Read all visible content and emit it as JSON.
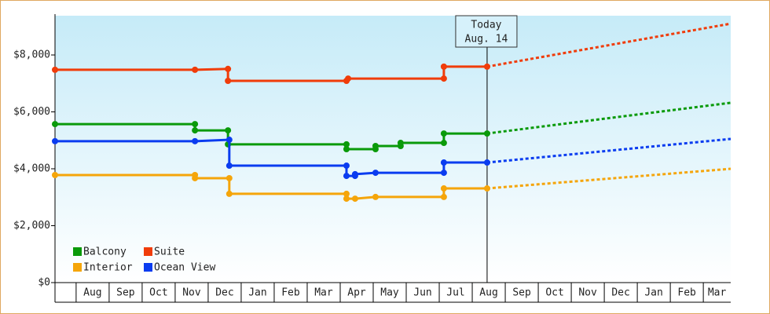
{
  "chart_data": {
    "type": "step-line",
    "categories": [
      "Aug",
      "Sep",
      "Oct",
      "Nov",
      "Dec",
      "Jan",
      "Feb",
      "Mar",
      "Apr",
      "May",
      "Jun",
      "Jul",
      "Aug",
      "Sep",
      "Oct",
      "Nov",
      "Dec",
      "Jan",
      "Feb",
      "Mar"
    ],
    "xlim": [
      -0.64,
      19.83
    ],
    "ylim": [
      0,
      9380
    ],
    "yticks": [
      {
        "value": 0,
        "label": "$0"
      },
      {
        "value": 2000,
        "label": "$2,000"
      },
      {
        "value": 4000,
        "label": "$4,000"
      },
      {
        "value": 6000,
        "label": "$6,000"
      },
      {
        "value": 8000,
        "label": "$8,000"
      }
    ],
    "annotation": {
      "x": 12.45,
      "lines": [
        "Today",
        "Aug. 14"
      ]
    },
    "legend_position": "lower left",
    "series": [
      {
        "name": "Balcony",
        "color": "#0a9a0a",
        "x": [
          -0.64,
          3.6,
          3.6,
          4.6,
          4.6,
          8.19,
          8.19,
          9.07,
          9.07,
          9.83,
          9.83,
          11.14,
          11.14,
          12.45
        ],
        "values": [
          5570,
          5570,
          5350,
          5350,
          4860,
          4860,
          4690,
          4690,
          4800,
          4800,
          4910,
          4910,
          5240,
          5240
        ],
        "forecast": {
          "x": [
            12.45,
            19.83
          ],
          "values": [
            5240,
            6320
          ]
        }
      },
      {
        "name": "Suite",
        "color": "#f03c0a",
        "x": [
          -0.64,
          3.6,
          4.6,
          4.6,
          8.19,
          8.24,
          11.14,
          11.14,
          12.45
        ],
        "values": [
          7480,
          7480,
          7510,
          7090,
          7090,
          7170,
          7170,
          7590,
          7590
        ],
        "forecast": {
          "x": [
            12.45,
            19.83
          ],
          "values": [
            7590,
            9100
          ]
        }
      },
      {
        "name": "Interior",
        "color": "#f5a50a",
        "x": [
          -0.64,
          3.6,
          3.6,
          4.64,
          4.64,
          8.19,
          8.19,
          8.45,
          9.07,
          11.14,
          11.14,
          12.45
        ],
        "values": [
          3780,
          3780,
          3670,
          3670,
          3120,
          3120,
          2950,
          2950,
          3010,
          3010,
          3310,
          3310
        ],
        "forecast": {
          "x": [
            12.45,
            19.83
          ],
          "values": [
            3310,
            4000
          ]
        }
      },
      {
        "name": "Ocean View",
        "color": "#0a3cf0",
        "x": [
          -0.64,
          3.6,
          4.64,
          4.64,
          8.19,
          8.19,
          8.45,
          8.45,
          9.07,
          11.14,
          11.14,
          12.45
        ],
        "values": [
          4970,
          4970,
          5020,
          4110,
          4110,
          3750,
          3750,
          3810,
          3860,
          3860,
          4220,
          4220
        ],
        "forecast": {
          "x": [
            12.45,
            19.83
          ],
          "values": [
            4220,
            5050
          ]
        }
      }
    ]
  }
}
